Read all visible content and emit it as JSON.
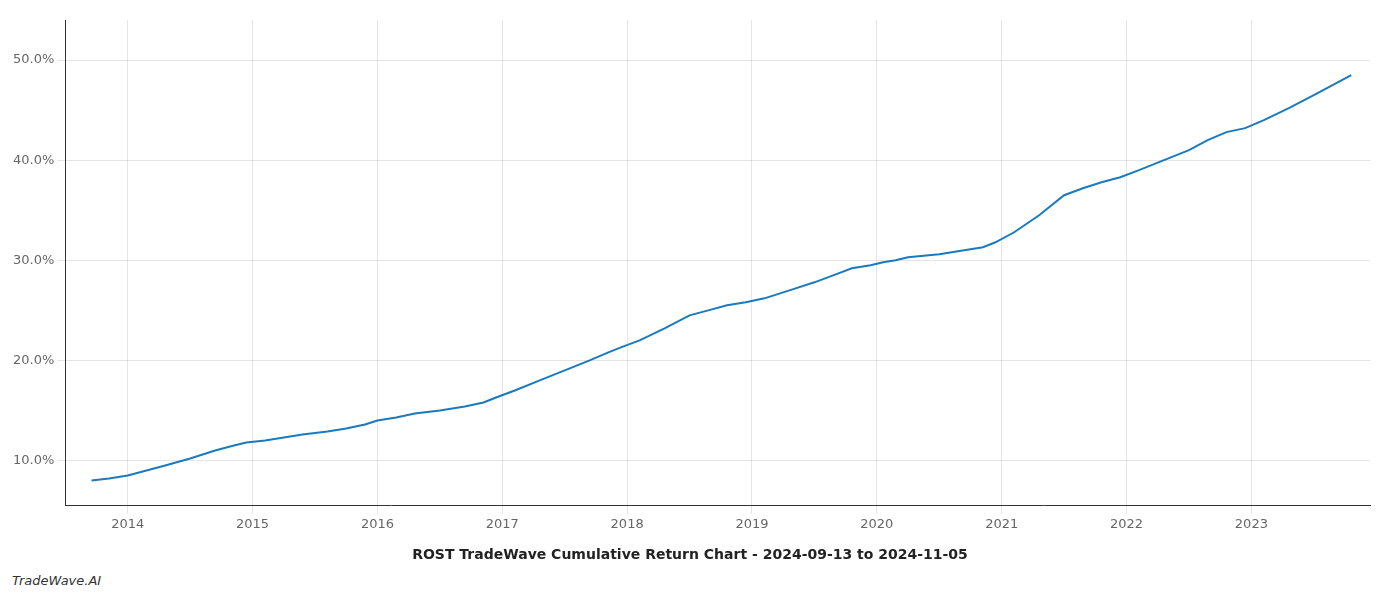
{
  "chart_data": {
    "type": "line",
    "title": "ROST TradeWave Cumulative Return Chart - 2024-09-13 to 2024-11-05",
    "annotations": [
      "TradeWave.AI"
    ],
    "color": "#1a7abf",
    "x": [
      2013.71,
      2013.85,
      2014.0,
      2014.15,
      2014.3,
      2014.5,
      2014.7,
      2014.85,
      2014.95,
      2015.1,
      2015.25,
      2015.4,
      2015.6,
      2015.75,
      2015.9,
      2016.0,
      2016.15,
      2016.3,
      2016.5,
      2016.7,
      2016.85,
      2016.95,
      2017.1,
      2017.3,
      2017.5,
      2017.7,
      2017.85,
      2017.95,
      2018.1,
      2018.3,
      2018.5,
      2018.65,
      2018.8,
      2018.95,
      2019.1,
      2019.3,
      2019.5,
      2019.65,
      2019.8,
      2019.95,
      2020.05,
      2020.15,
      2020.25,
      2020.5,
      2020.7,
      2020.85,
      2020.95,
      2021.1,
      2021.3,
      2021.5,
      2021.65,
      2021.8,
      2021.95,
      2022.1,
      2022.3,
      2022.5,
      2022.65,
      2022.8,
      2022.95,
      2023.1,
      2023.3,
      2023.5,
      2023.65,
      2023.8
    ],
    "values": [
      8.0,
      8.2,
      8.5,
      9.0,
      9.5,
      10.2,
      11.0,
      11.5,
      11.8,
      12.0,
      12.3,
      12.6,
      12.9,
      13.2,
      13.6,
      14.0,
      14.3,
      14.7,
      15.0,
      15.4,
      15.8,
      16.3,
      17.0,
      18.0,
      19.0,
      20.0,
      20.8,
      21.3,
      22.0,
      23.2,
      24.5,
      25.0,
      25.5,
      25.8,
      26.2,
      27.0,
      27.8,
      28.5,
      29.2,
      29.5,
      29.8,
      30.0,
      30.3,
      30.6,
      31.0,
      31.3,
      31.8,
      32.8,
      34.5,
      36.5,
      37.2,
      37.8,
      38.3,
      39.0,
      40.0,
      41.0,
      42.0,
      42.8,
      43.2,
      44.0,
      45.2,
      46.5,
      47.5,
      48.5
    ],
    "xlim": [
      2013.5,
      2023.95
    ],
    "ylim": [
      5.5,
      54.0
    ],
    "xticks": [
      2014,
      2015,
      2016,
      2017,
      2018,
      2019,
      2020,
      2021,
      2022,
      2023
    ],
    "yticks": [
      {
        "value": 10.0,
        "label": "10.0%"
      },
      {
        "value": 20.0,
        "label": "20.0%"
      },
      {
        "value": 30.0,
        "label": "30.0%"
      },
      {
        "value": 40.0,
        "label": "40.0%"
      },
      {
        "value": 50.0,
        "label": "50.0%"
      }
    ],
    "grid": true
  }
}
